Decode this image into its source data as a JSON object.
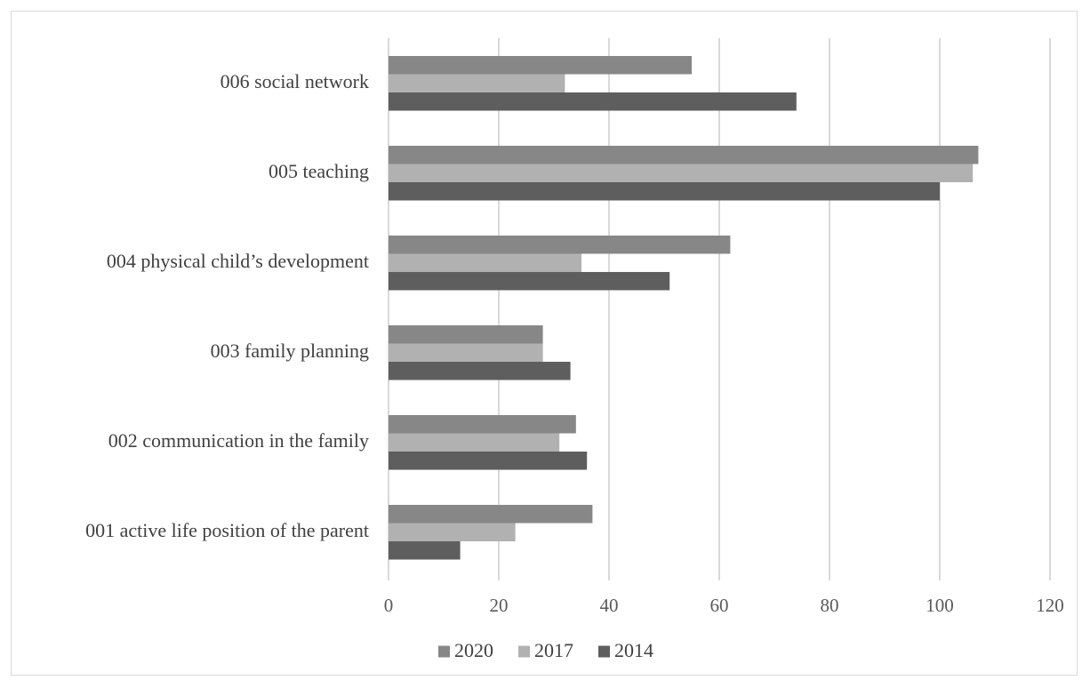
{
  "chart_data": {
    "type": "bar",
    "orientation": "horizontal",
    "title": "",
    "xlabel": "",
    "ylabel": "",
    "xlim": [
      0,
      120
    ],
    "x_ticks": [
      0,
      20,
      40,
      60,
      80,
      100,
      120
    ],
    "grid": true,
    "legend_position": "bottom",
    "categories": [
      "006 social network",
      "005 teaching",
      "004 physical  child’s development",
      "003 family planning",
      "002 communication in the family",
      "001 active life position of the parent"
    ],
    "series": [
      {
        "name": "2020",
        "color": "#878787",
        "values": [
          55,
          107,
          62,
          28,
          34,
          37
        ]
      },
      {
        "name": "2017",
        "color": "#b1b1b1",
        "values": [
          32,
          106,
          35,
          28,
          31,
          23
        ]
      },
      {
        "name": "2014",
        "color": "#5e5e5e",
        "values": [
          74,
          100,
          51,
          33,
          36,
          13
        ]
      }
    ]
  }
}
